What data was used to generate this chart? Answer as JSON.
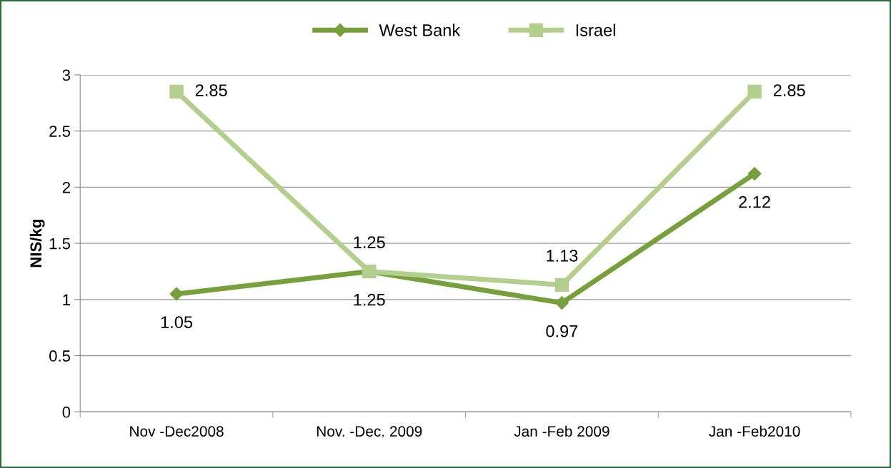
{
  "chart_data": {
    "type": "line",
    "ylabel": "NIS/kg",
    "categories": [
      "Nov -Dec2008",
      "Nov. -Dec. 2009",
      "Jan -Feb 2009",
      "Jan -Feb2010"
    ],
    "series": [
      {
        "name": "West Bank",
        "color": "#77a03c",
        "marker": "diamond",
        "values": [
          1.05,
          1.25,
          0.97,
          2.12
        ]
      },
      {
        "name": "Israel",
        "color": "#b3cf8e",
        "marker": "square",
        "values": [
          2.85,
          1.25,
          1.13,
          2.85
        ]
      }
    ],
    "ylim": [
      0,
      3
    ],
    "yticks": [
      0,
      0.5,
      1,
      1.5,
      2,
      2.5,
      3
    ],
    "grid": "y",
    "legend": "top",
    "data_labels": true
  }
}
